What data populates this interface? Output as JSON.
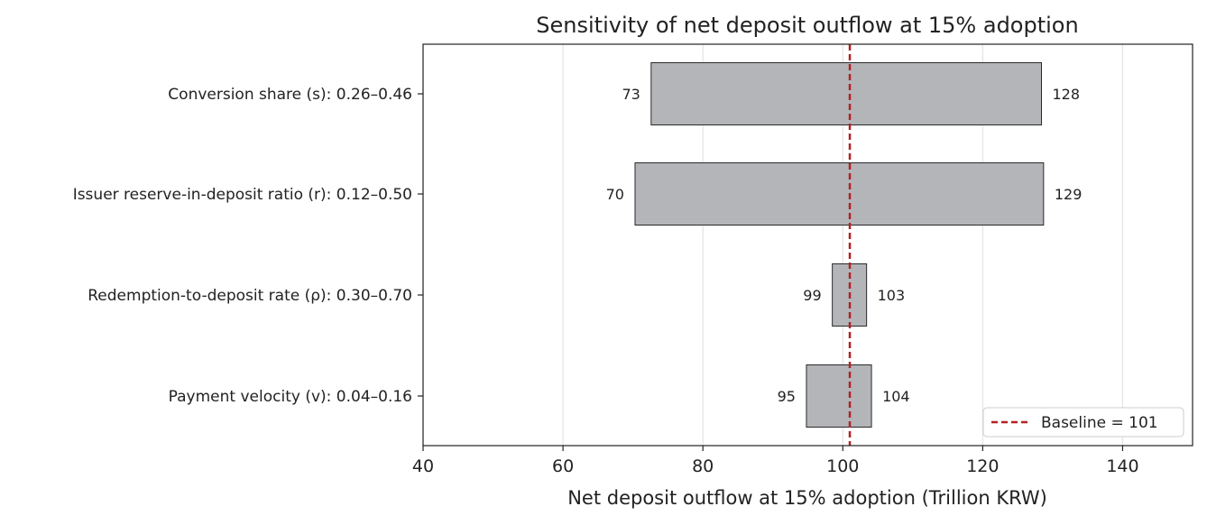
{
  "chart_data": {
    "type": "bar",
    "orientation": "horizontal",
    "title": "Sensitivity of net deposit outflow at 15% adoption",
    "xlabel": "Net deposit outflow at 15% adoption (Trillion KRW)",
    "ylabel": "",
    "xlim": [
      40,
      150
    ],
    "xticks": [
      "40",
      "60",
      "80",
      "100",
      "120",
      "140"
    ],
    "grid": true,
    "legend_position": "lower-right",
    "baseline": {
      "value": 101,
      "label": "Baseline = 101"
    },
    "categories": [
      "Conversion share (s): 0.26–0.46",
      "Issuer reserve-in-deposit ratio (r): 0.12–0.50",
      "Redemption-to-deposit rate (ρ): 0.30–0.70",
      "Payment velocity (v): 0.04–0.16"
    ],
    "low": [
      72.6,
      70.3,
      98.5,
      94.8
    ],
    "high": [
      128.4,
      128.7,
      103.4,
      104.1
    ],
    "low_labels": [
      "73",
      "70",
      "99",
      "95"
    ],
    "high_labels": [
      "128",
      "129",
      "103",
      "104"
    ],
    "colors": {
      "bar_fill": "#b3b5b9",
      "bar_edge": "#2a2a2a",
      "baseline": "#b22222",
      "grid": "#e3e3e3"
    }
  }
}
